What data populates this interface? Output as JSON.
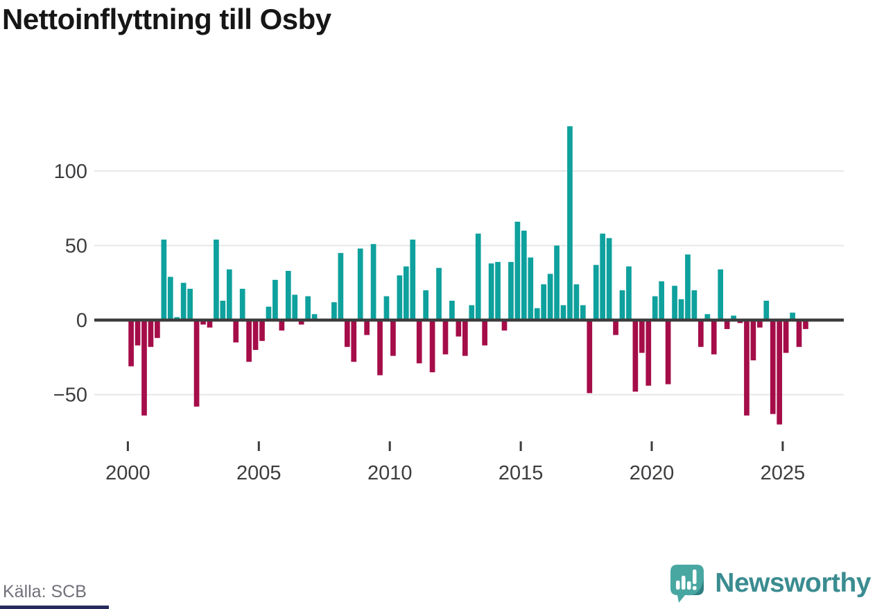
{
  "title": "Nettoinflyttning till Osby",
  "source": "Källa: SCB",
  "branding": {
    "logo_text": "Newsworthy",
    "logo_icon": "newsworthy-speech-bubble-chart-icon"
  },
  "colors": {
    "positive_bar": "#0ea19d",
    "negative_bar": "#a50d49",
    "axis_line": "#3d3d3d",
    "gridline": "#e6e6e6",
    "axis_label": "#3d3d40",
    "title_text": "#161616",
    "source_text": "#70707a",
    "logo_teal": "#3a8c90",
    "logo_icon_fill": "#49a7a2",
    "logo_icon_shade": "#2f7f82",
    "bottom_bar": "#272b5e"
  },
  "chart_data": {
    "type": "bar",
    "title": "Nettoinflyttning till Osby",
    "xlabel": "",
    "ylabel": "",
    "grid": "horizontal",
    "legend": "none",
    "ylim": [
      -75,
      135
    ],
    "y_ticks": [
      100,
      50,
      0,
      -50
    ],
    "y_tick_labels": [
      "100",
      "50",
      "0",
      "−50"
    ],
    "x_tick_years": [
      2000,
      2005,
      2010,
      2015,
      2020,
      2025
    ],
    "x_tick_labels": [
      "2000",
      "2005",
      "2010",
      "2015",
      "2020",
      "2025"
    ],
    "categories": [
      "2000Q1",
      "2000Q2",
      "2000Q3",
      "2000Q4",
      "2001Q1",
      "2001Q2",
      "2001Q3",
      "2001Q4",
      "2002Q1",
      "2002Q2",
      "2002Q3",
      "2002Q4",
      "2003Q1",
      "2003Q2",
      "2003Q3",
      "2003Q4",
      "2004Q1",
      "2004Q2",
      "2004Q3",
      "2004Q4",
      "2005Q1",
      "2005Q2",
      "2005Q3",
      "2005Q4",
      "2006Q1",
      "2006Q2",
      "2006Q3",
      "2006Q4",
      "2007Q1",
      "2007Q2",
      "2007Q3",
      "2007Q4",
      "2008Q1",
      "2008Q2",
      "2008Q3",
      "2008Q4",
      "2009Q1",
      "2009Q2",
      "2009Q3",
      "2009Q4",
      "2010Q1",
      "2010Q2",
      "2010Q3",
      "2010Q4",
      "2011Q1",
      "2011Q2",
      "2011Q3",
      "2011Q4",
      "2012Q1",
      "2012Q2",
      "2012Q3",
      "2012Q4",
      "2013Q1",
      "2013Q2",
      "2013Q3",
      "2013Q4",
      "2014Q1",
      "2014Q2",
      "2014Q3",
      "2014Q4",
      "2015Q1",
      "2015Q2",
      "2015Q3",
      "2015Q4",
      "2016Q1",
      "2016Q2",
      "2016Q3",
      "2016Q4",
      "2017Q1",
      "2017Q2",
      "2017Q3",
      "2017Q4",
      "2018Q1",
      "2018Q2",
      "2018Q3",
      "2018Q4",
      "2019Q1",
      "2019Q2",
      "2019Q3",
      "2019Q4",
      "2020Q1",
      "2020Q2",
      "2020Q3",
      "2020Q4",
      "2021Q1",
      "2021Q2",
      "2021Q3",
      "2021Q4",
      "2022Q1",
      "2022Q2",
      "2022Q3",
      "2022Q4",
      "2023Q1",
      "2023Q2",
      "2023Q3",
      "2023Q4",
      "2024Q1",
      "2024Q2",
      "2024Q3",
      "2024Q4",
      "2025Q1",
      "2025Q2",
      "2025Q3",
      "2025Q4"
    ],
    "values": [
      -31,
      -17,
      -64,
      -18,
      -12,
      54,
      29,
      2,
      25,
      21,
      -58,
      -3,
      -5,
      54,
      13,
      34,
      -15,
      21,
      -28,
      -20,
      -14,
      9,
      27,
      -7,
      33,
      17,
      -3,
      16,
      4,
      0,
      0,
      12,
      45,
      -18,
      -28,
      48,
      -10,
      51,
      -37,
      16,
      -24,
      30,
      36,
      54,
      -29,
      20,
      -35,
      35,
      -23,
      13,
      -11,
      -24,
      10,
      58,
      -17,
      38,
      39,
      -7,
      39,
      66,
      60,
      42,
      8,
      24,
      31,
      50,
      10,
      130,
      24,
      10,
      -49,
      37,
      58,
      55,
      -10,
      20,
      36,
      -48,
      -22,
      -44,
      16,
      26,
      -43,
      23,
      14,
      44,
      20,
      -18,
      4,
      -23,
      34,
      -6,
      3,
      -2,
      -64,
      -27,
      -5,
      13,
      -63,
      -70,
      -22,
      5,
      -18,
      -6
    ]
  }
}
